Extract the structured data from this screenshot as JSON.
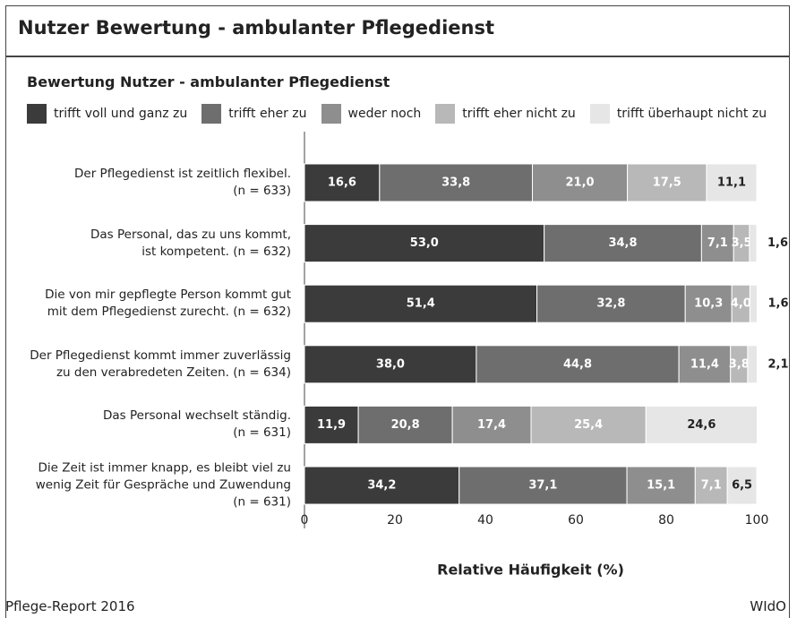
{
  "header": {
    "title": "Nutzer Bewertung - ambulanter Pflegedienst"
  },
  "chart_data": {
    "type": "stacked-bar-horizontal",
    "title": "Bewertung Nutzer - ambulanter Pflegedienst",
    "categories": [
      "Der Pflegedienst ist zeitlich flexibel.\n(n = 633)",
      "Das Personal, das zu uns kommt,\nist kompetent. (n = 632)",
      "Die von mir gepflegte Person kommt gut\nmit dem Pflegedienst zurecht. (n = 632)",
      "Der Pflegedienst kommt immer zuverlässig\nzu den verabredeten Zeiten. (n = 634)",
      "Das Personal wechselt ständig.\n(n = 631)",
      "Die Zeit ist immer knapp, es bleibt viel zu\nwenig Zeit für Gespräche und Zuwendung\n(n = 631)"
    ],
    "series": [
      {
        "name": "trifft voll und ganz zu",
        "color": "#3b3b3b",
        "values": [
          16.6,
          53.0,
          51.4,
          38.0,
          11.9,
          34.2
        ],
        "value_labels": [
          "16,6",
          "53,0",
          "51,4",
          "38,0",
          "11,9",
          "34,2"
        ]
      },
      {
        "name": "trifft eher zu",
        "color": "#6e6e6e",
        "values": [
          33.8,
          34.8,
          32.8,
          44.8,
          20.8,
          37.1
        ],
        "value_labels": [
          "33,8",
          "34,8",
          "32,8",
          "44,8",
          "20,8",
          "37,1"
        ]
      },
      {
        "name": "weder noch",
        "color": "#8e8e8e",
        "values": [
          21.0,
          7.1,
          10.3,
          11.4,
          17.4,
          15.1
        ],
        "value_labels": [
          "21,0",
          "7,1",
          "10,3",
          "11,4",
          "17,4",
          "15,1"
        ]
      },
      {
        "name": "trifft eher nicht zu",
        "color": "#b8b8b8",
        "values": [
          17.5,
          3.5,
          4.0,
          3.8,
          25.4,
          7.1
        ],
        "value_labels": [
          "17,5",
          "3,5",
          "4,0",
          "3,8",
          "25,4",
          "7,1"
        ]
      },
      {
        "name": "trifft überhaupt nicht zu",
        "color": "#e6e6e6",
        "values": [
          11.1,
          1.6,
          1.6,
          2.1,
          24.6,
          6.5
        ],
        "value_labels": [
          "11,1",
          "1,6",
          "1,6",
          "2,1",
          "24,6",
          "6,5"
        ]
      }
    ],
    "xlim": [
      0,
      100
    ],
    "xticks": [
      0,
      20,
      40,
      60,
      80,
      100
    ],
    "xlabel": "Relative Häufigkeit (%)"
  },
  "footer": {
    "source": "Pflege-Report 2016",
    "publisher": "WIdO"
  }
}
